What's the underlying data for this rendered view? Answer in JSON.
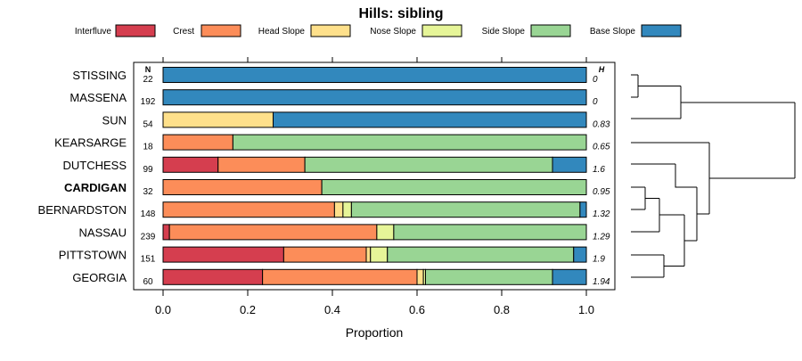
{
  "chart_data": {
    "type": "bar",
    "orientation": "horizontal",
    "stacked": true,
    "title": "Hills: sibling",
    "xlabel": "Proportion",
    "ylabel": "",
    "xlim": [
      0,
      1
    ],
    "x_ticks": [
      "0.0",
      "0.2",
      "0.4",
      "0.6",
      "0.8",
      "1.0"
    ],
    "n_header": "N",
    "h_header": "H",
    "highlighted_category": "CARDIGAN",
    "legend_position": "top",
    "categories": [
      "STISSING",
      "MASSENA",
      "SUN",
      "KEARSARGE",
      "DUTCHESS",
      "CARDIGAN",
      "BERNARDSTON",
      "NASSAU",
      "PITTSTOWN",
      "GEORGIA"
    ],
    "n_values": [
      "22",
      "192",
      "54",
      "18",
      "99",
      "32",
      "148",
      "239",
      "151",
      "60"
    ],
    "h_values": [
      "0",
      "0",
      "0.83",
      "0.65",
      "1.6",
      "0.95",
      "1.32",
      "1.29",
      "1.9",
      "1.94"
    ],
    "series": [
      {
        "name": "Interfluve",
        "color": "#d53e4f",
        "values": [
          0,
          0,
          0,
          0,
          0.13,
          0,
          0,
          0.015,
          0.285,
          0.235
        ]
      },
      {
        "name": "Crest",
        "color": "#fc8d59",
        "values": [
          0,
          0,
          0,
          0.165,
          0.205,
          0.375,
          0.405,
          0.49,
          0.195,
          0.365
        ]
      },
      {
        "name": "Head Slope",
        "color": "#fee08b",
        "values": [
          0,
          0,
          0.26,
          0,
          0,
          0,
          0.02,
          0,
          0.01,
          0.015
        ]
      },
      {
        "name": "Nose Slope",
        "color": "#e6f598",
        "values": [
          0,
          0,
          0,
          0,
          0,
          0,
          0.02,
          0.04,
          0.04,
          0.005
        ]
      },
      {
        "name": "Side Slope",
        "color": "#99d594",
        "values": [
          0,
          0,
          0,
          0.835,
          0.585,
          0.625,
          0.54,
          0.455,
          0.44,
          0.3
        ]
      },
      {
        "name": "Base Slope",
        "color": "#3288bd",
        "values": [
          1,
          1,
          0.74,
          0,
          0.08,
          0,
          0.015,
          0,
          0.03,
          0.08
        ]
      }
    ]
  }
}
